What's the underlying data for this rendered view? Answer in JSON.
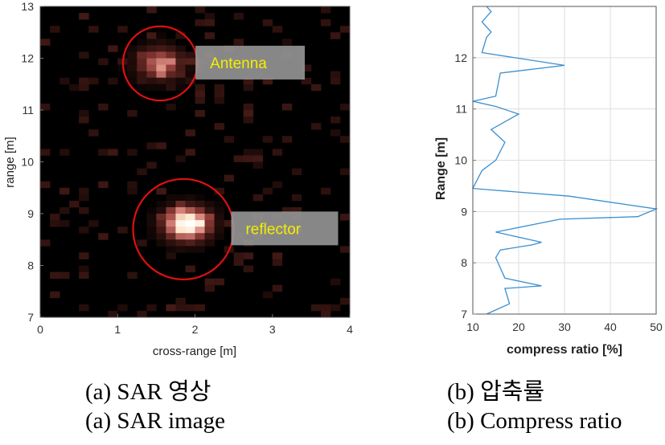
{
  "chart_data": [
    {
      "type": "heatmap",
      "xlabel": "cross-range [m]",
      "ylabel": "range [m]",
      "xlim": [
        0,
        4
      ],
      "ylim": [
        7,
        13
      ],
      "xticks": [
        "0",
        "1",
        "2",
        "3",
        "4"
      ],
      "yticks": [
        "7",
        "8",
        "9",
        "10",
        "11",
        "12",
        "13"
      ],
      "grid_cols": 32,
      "grid_rows": 48,
      "hotspots": [
        {
          "x": 1.9,
          "y": 8.8,
          "intensity": 1.0
        },
        {
          "x": 1.55,
          "y": 11.9,
          "intensity": 0.55
        }
      ],
      "annotations": [
        {
          "text": "Antenna",
          "x": 1.55,
          "y": 11.9,
          "circle_radius_m": 0.48
        },
        {
          "text": "reflector",
          "x": 1.85,
          "y": 8.7,
          "circle_radius_m": 0.65
        }
      ],
      "colormap": [
        "#000000",
        "#3a1612",
        "#8c3a36",
        "#d98a80",
        "#ffe6c8",
        "#ffffff"
      ]
    },
    {
      "type": "line",
      "xlabel": "compress ratio [%]",
      "ylabel": "Range [m]",
      "xlim": [
        10,
        50
      ],
      "ylim": [
        7,
        13
      ],
      "xticks": [
        "10",
        "20",
        "30",
        "40",
        "50"
      ],
      "yticks": [
        "7",
        "8",
        "9",
        "10",
        "11",
        "12"
      ],
      "grid": true,
      "line_color": "#3a8fd0",
      "series": [
        {
          "x": [
            13,
            18,
            17,
            25,
            17,
            15,
            16,
            23,
            25,
            15,
            29,
            46,
            50,
            31,
            10,
            12,
            15,
            17,
            14,
            20,
            15,
            10,
            15,
            16,
            30,
            12,
            13,
            14,
            12,
            14,
            13
          ],
          "y": [
            7.0,
            7.2,
            7.5,
            7.55,
            7.7,
            8.1,
            8.25,
            8.35,
            8.4,
            8.6,
            8.85,
            8.9,
            9.05,
            9.3,
            9.45,
            9.8,
            10.0,
            10.35,
            10.6,
            10.9,
            11.05,
            11.15,
            11.25,
            11.7,
            11.85,
            12.1,
            12.4,
            12.5,
            12.7,
            12.9,
            13.0
          ]
        }
      ]
    }
  ],
  "captions": {
    "a_kr": "(a)  SAR  영상",
    "a_en": "(a)  SAR  image",
    "b_kr": "(b)  압축률",
    "b_en": "(b)  Compress  ratio"
  }
}
